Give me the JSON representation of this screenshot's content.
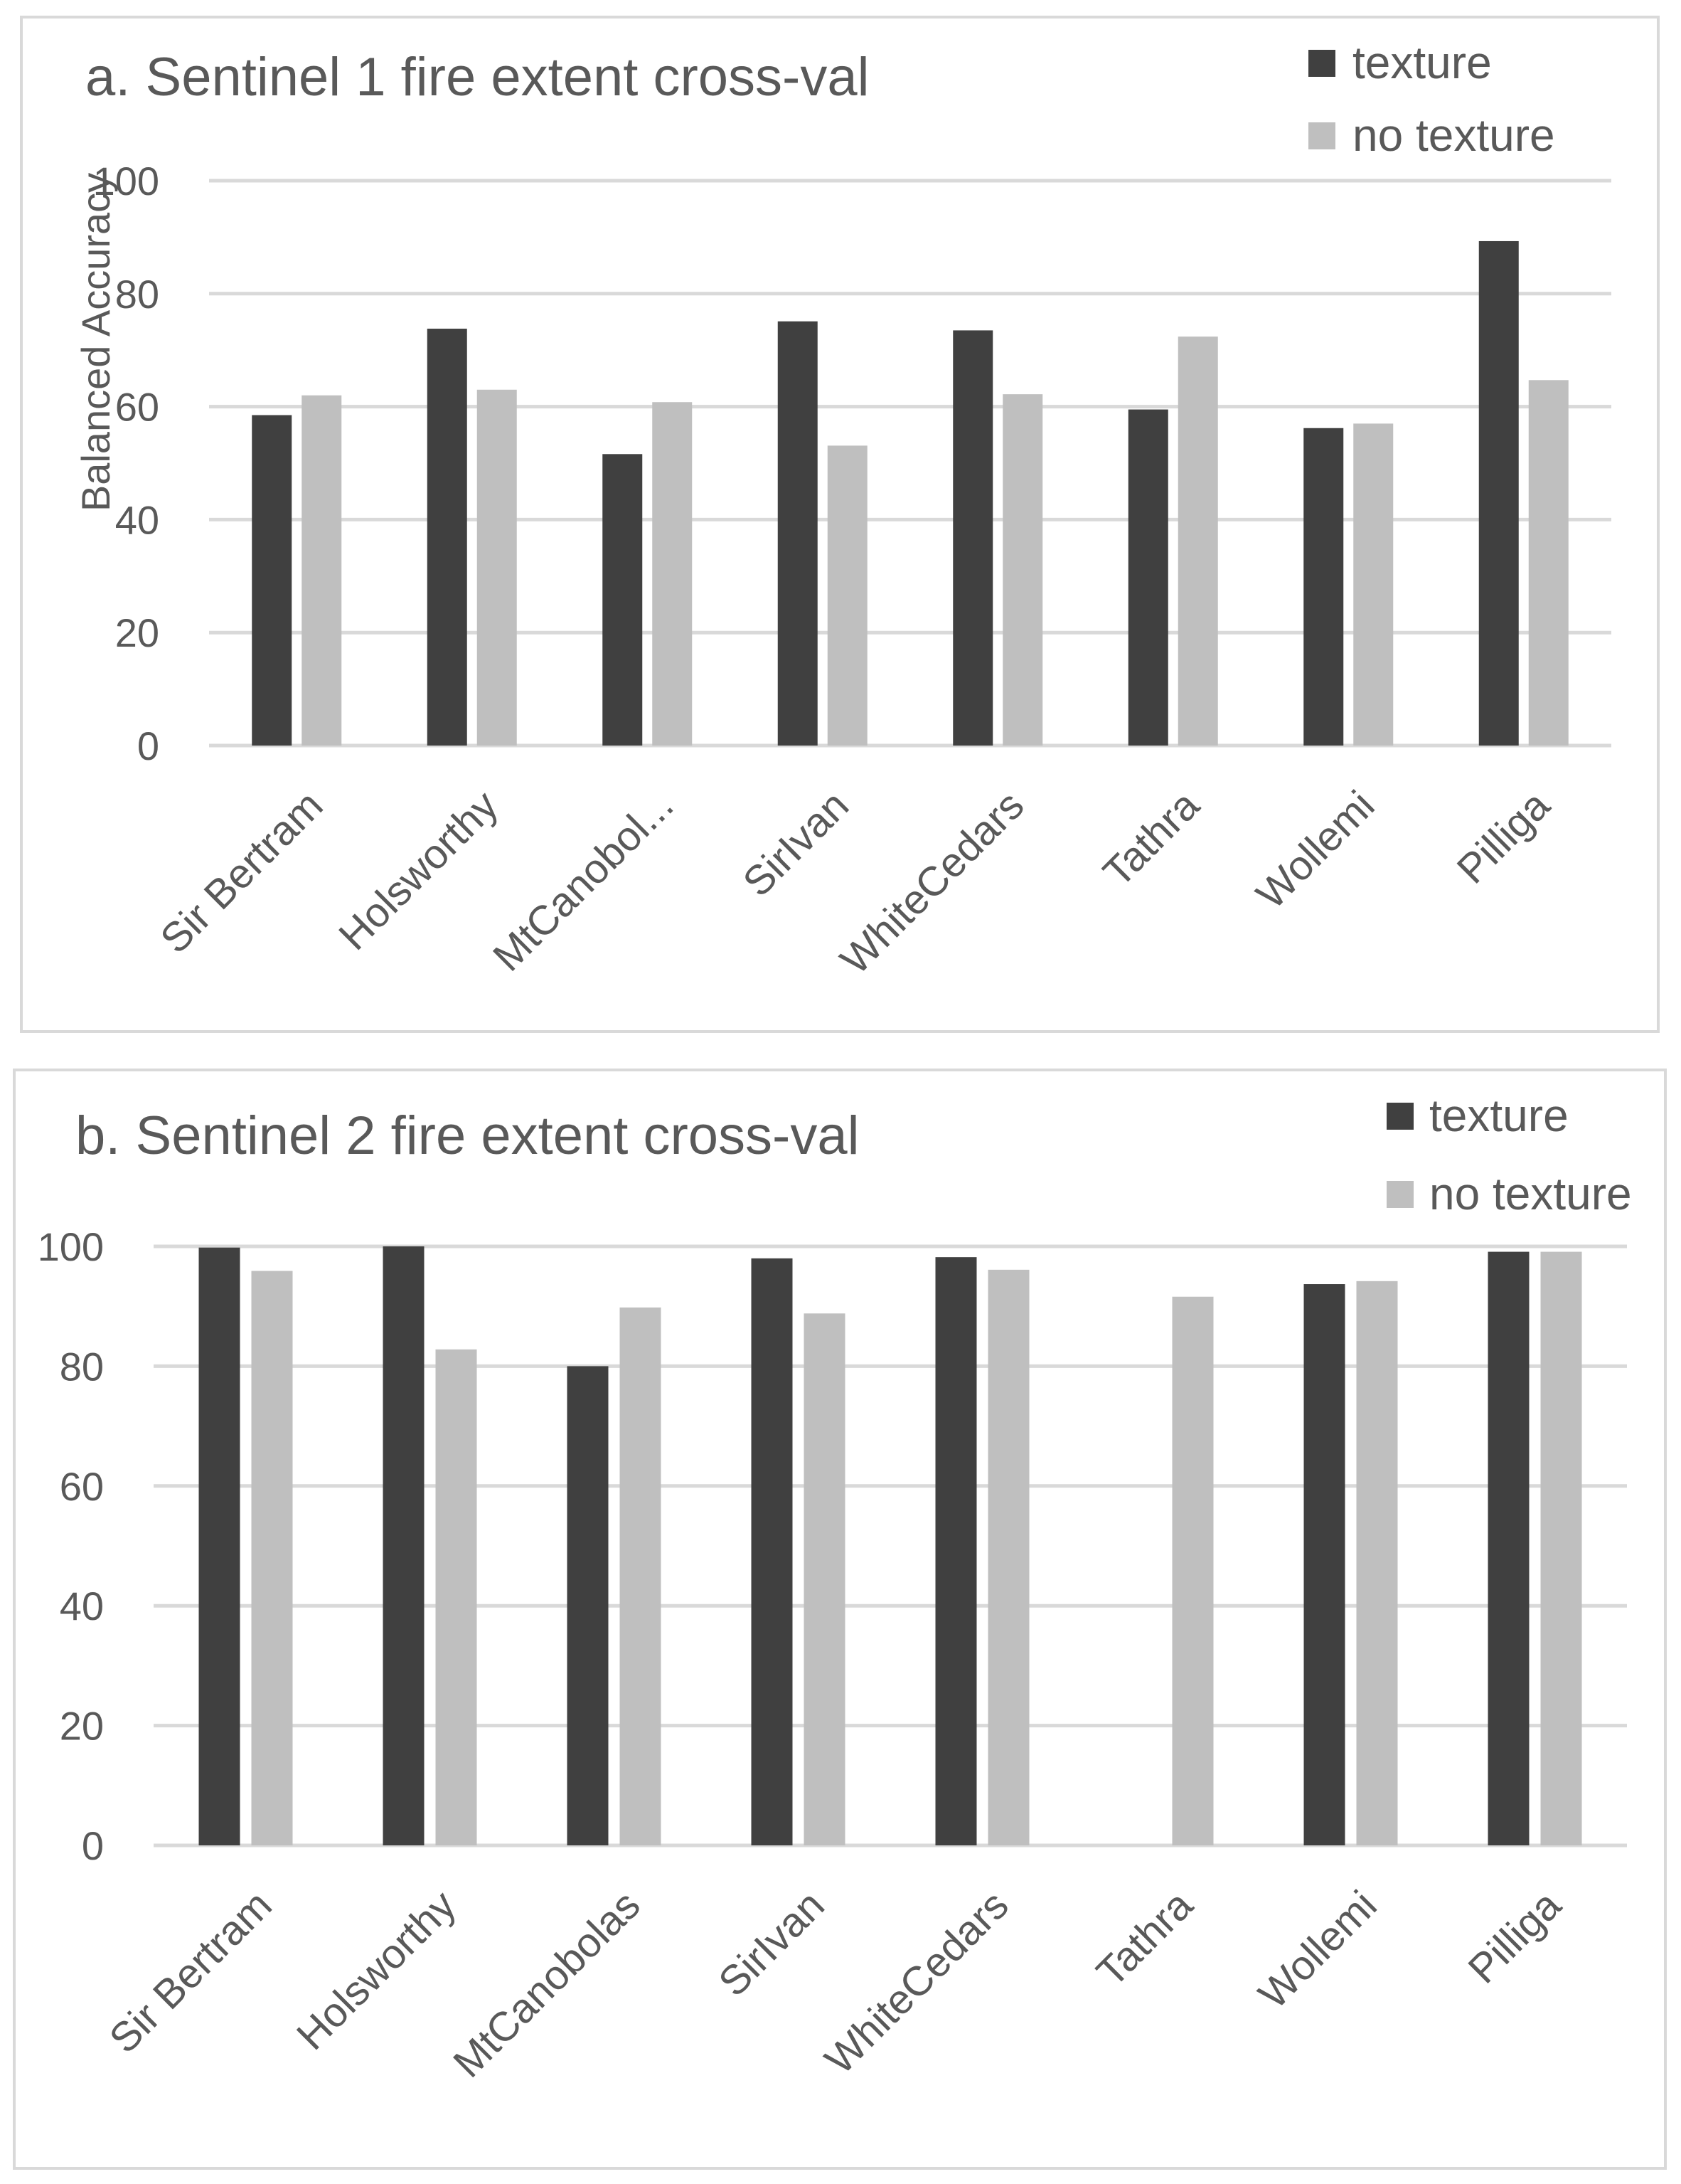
{
  "colors": {
    "texture": "#404040",
    "no_texture": "#bfbfbf",
    "text": "#595959",
    "grid": "#d9d9d9"
  },
  "chart_data": [
    {
      "type": "bar",
      "title": "a. Sentinel 1 fire extent cross-val",
      "xlabel": "",
      "ylabel": "Balanced Accuracy",
      "ylim": [
        0,
        100
      ],
      "yticks": [
        "0",
        "20",
        "40",
        "60",
        "80",
        "100"
      ],
      "grid": true,
      "legend_position": "top-right",
      "categories": [
        "Sir Bertram",
        "Holsworthy",
        "MtCanobol...",
        "SirIvan",
        "WhiteCedars",
        "Tathra",
        "Wollemi",
        "Pilliga"
      ],
      "series": [
        {
          "name": "texture",
          "values": [
            58.5,
            73.8,
            51.6,
            75.1,
            73.5,
            59.5,
            56.2,
            89.3
          ]
        },
        {
          "name": "no texture",
          "values": [
            62.0,
            63.0,
            60.8,
            53.1,
            62.2,
            72.4,
            57.0,
            64.7
          ]
        }
      ]
    },
    {
      "type": "bar",
      "title": "b. Sentinel 2 fire extent cross-val",
      "xlabel": "",
      "ylabel": "",
      "ylim": [
        0,
        100
      ],
      "yticks": [
        "0",
        "20",
        "40",
        "60",
        "80",
        "100"
      ],
      "grid": true,
      "legend_position": "top-right",
      "categories": [
        "Sir Bertram",
        "Holsworthy",
        "MtCanobolas",
        "SirIvan",
        "WhiteCedars",
        "Tathra",
        "Wollemi",
        "Pilliga"
      ],
      "series": [
        {
          "name": "texture",
          "values": [
            99.8,
            100.0,
            80.0,
            98.0,
            98.2,
            0,
            93.7,
            99.1
          ]
        },
        {
          "name": "no texture",
          "values": [
            95.9,
            82.8,
            89.8,
            88.8,
            96.1,
            91.6,
            94.2,
            99.1
          ]
        }
      ]
    }
  ]
}
